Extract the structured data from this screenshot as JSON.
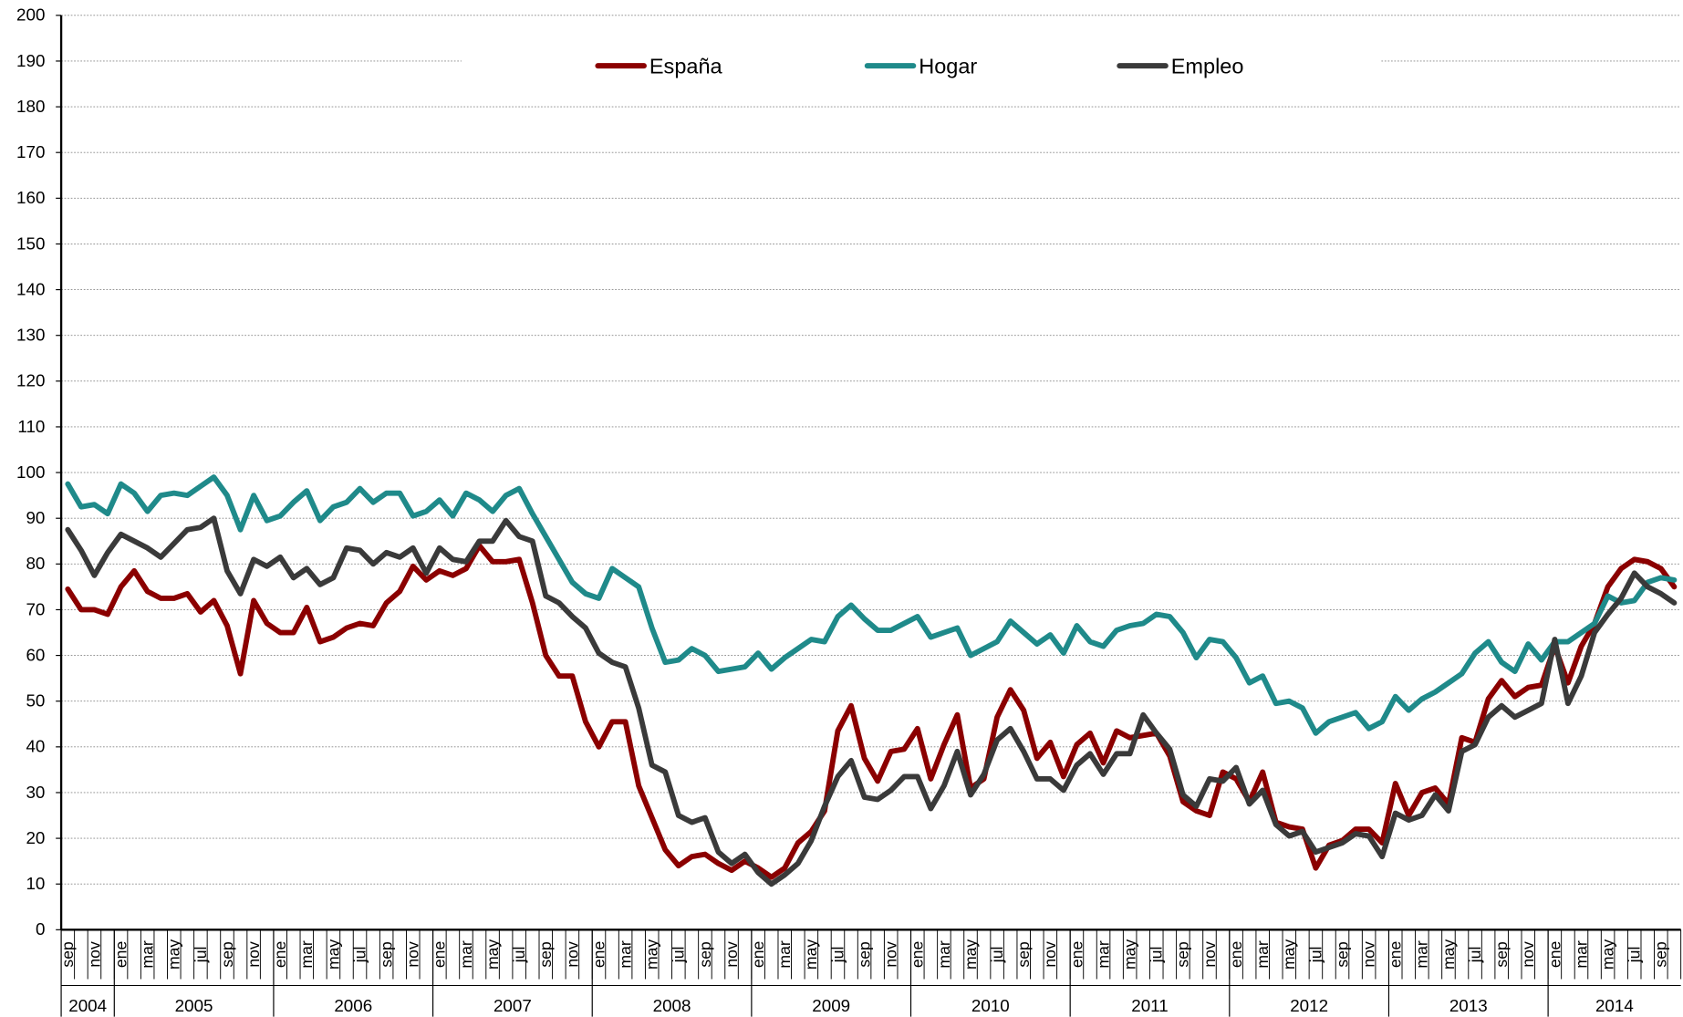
{
  "chart_data": {
    "type": "line",
    "categories": [
      "sep",
      null,
      "nov",
      null,
      "ene",
      null,
      "mar",
      null,
      "may",
      null,
      "jul",
      null,
      "sep",
      null,
      "nov",
      null,
      "ene",
      null,
      "mar",
      null,
      "may",
      null,
      "jul",
      null,
      "sep",
      null,
      "nov",
      null,
      "ene",
      null,
      "mar",
      null,
      "may",
      null,
      "jul",
      null,
      "sep",
      null,
      "nov",
      null,
      "ene",
      null,
      "mar",
      null,
      "may",
      null,
      "jul",
      null,
      "sep",
      null,
      "nov",
      null,
      "ene",
      null,
      "mar",
      null,
      "may",
      null,
      "jul",
      null,
      "sep",
      null,
      "nov",
      null,
      "ene",
      null,
      "mar",
      null,
      "may",
      null,
      "jul",
      null,
      "sep",
      null,
      "nov",
      null,
      "ene",
      null,
      "mar",
      null,
      "may",
      null,
      "jul",
      null,
      "sep",
      null,
      "nov",
      null,
      "ene",
      null,
      "mar",
      null,
      "may",
      null,
      "jul",
      null,
      "sep",
      null,
      "nov",
      null,
      "ene",
      null,
      "mar",
      null,
      "may",
      null,
      "jul",
      null,
      "sep",
      null,
      "nov",
      null,
      "ene",
      null,
      "mar",
      null,
      "may",
      null,
      "jul",
      null,
      "sep",
      null
    ],
    "years": [
      "2004",
      "2005",
      "2006",
      "2007",
      "2008",
      "2009",
      "2010",
      "2011",
      "2012",
      "2013",
      "2014"
    ],
    "series": [
      {
        "name": "España",
        "color": "#8b0000",
        "values": [
          74.5,
          70,
          70,
          69,
          75,
          78.5,
          74,
          72.5,
          72.5,
          73.5,
          69.5,
          72,
          66.5,
          56,
          72,
          67,
          65,
          65,
          70.5,
          63,
          64,
          66,
          67,
          66.5,
          71.5,
          74,
          79.5,
          76.5,
          78.5,
          77.5,
          79,
          84,
          80.5,
          80.5,
          81,
          71.5,
          60,
          55.5,
          55.5,
          45.5,
          40,
          45.5,
          45.5,
          31.5,
          24.5,
          17.5,
          14,
          16,
          16.5,
          14.5,
          13,
          15,
          13.5,
          11.5,
          13.5,
          19,
          21.5,
          26,
          43.5,
          49,
          37.5,
          32.5,
          39,
          39.5,
          44,
          33,
          40.5,
          47,
          31,
          33,
          46.5,
          52.5,
          48,
          37.5,
          41,
          33.5,
          40.5,
          43,
          36.5,
          43.5,
          42,
          42.5,
          43,
          38,
          28,
          26,
          25,
          34.5,
          33,
          28,
          34.5,
          23.5,
          22.5,
          22,
          13.5,
          18.5,
          19.5,
          22,
          22,
          19,
          32,
          25,
          30,
          31,
          27.5,
          42,
          41,
          50.5,
          54.5,
          51,
          53,
          53.5,
          62,
          54,
          62,
          67,
          75,
          79,
          81,
          80.5,
          79,
          75
        ]
      },
      {
        "name": "Hogar",
        "color": "#1f8a8a",
        "values": [
          97.5,
          92.5,
          93,
          91,
          97.5,
          95.5,
          91.5,
          95,
          95.5,
          95,
          97,
          99,
          95,
          87.5,
          95,
          89.5,
          90.5,
          93.5,
          96,
          89.5,
          92.5,
          93.5,
          96.5,
          93.5,
          95.5,
          95.5,
          90.5,
          91.5,
          94,
          90.5,
          95.5,
          94,
          91.5,
          95,
          96.5,
          91,
          86,
          81,
          76,
          73.5,
          72.5,
          79,
          77,
          75,
          66,
          58.5,
          59,
          61.5,
          60,
          56.5,
          57,
          57.5,
          60.5,
          57,
          59.5,
          61.5,
          63.5,
          63,
          68.5,
          71,
          68,
          65.5,
          65.5,
          67,
          68.5,
          64,
          65,
          66,
          60,
          61.5,
          63,
          67.5,
          65,
          62.5,
          64.5,
          60.5,
          66.5,
          63,
          62,
          65.5,
          66.5,
          67,
          69,
          68.5,
          65,
          59.5,
          63.5,
          63,
          59.5,
          54,
          55.5,
          49.5,
          50,
          48.5,
          43,
          45.5,
          46.5,
          47.5,
          44,
          45.5,
          51,
          48,
          50.5,
          52,
          54,
          56,
          60.5,
          63,
          58.5,
          56.5,
          62.5,
          59,
          63,
          63,
          65,
          67,
          73,
          71.5,
          72,
          76,
          77,
          76.5
        ]
      },
      {
        "name": "Empleo",
        "color": "#3a3a3a",
        "values": [
          87.5,
          83,
          77.5,
          82.5,
          86.5,
          85,
          83.5,
          81.5,
          84.5,
          87.5,
          88,
          90,
          78.5,
          73.5,
          81,
          79.5,
          81.5,
          77,
          79,
          75.5,
          77,
          83.5,
          83,
          80,
          82.5,
          81.5,
          83.5,
          78,
          83.5,
          81,
          80.5,
          85,
          85,
          89.5,
          86,
          85,
          73,
          71.5,
          68.5,
          66,
          60.5,
          58.5,
          57.5,
          48.5,
          36,
          34.5,
          25,
          23.5,
          24.5,
          17,
          14.5,
          16.5,
          12.5,
          10,
          12,
          14.5,
          19.5,
          27,
          33.5,
          37,
          29,
          28.5,
          30.5,
          33.5,
          33.5,
          26.5,
          31.5,
          39,
          29.5,
          34,
          41.5,
          44,
          39,
          33,
          33,
          30.5,
          36,
          38.5,
          34,
          38.5,
          38.5,
          47,
          43,
          39.5,
          29.5,
          27,
          33,
          32.5,
          35.5,
          27.5,
          30.5,
          23,
          20.5,
          21.5,
          17,
          18,
          19,
          21,
          20.5,
          16,
          25.5,
          24,
          25,
          29.5,
          26,
          39,
          40.5,
          46.5,
          49,
          46.5,
          48,
          49.5,
          63.5,
          49.5,
          55.5,
          65,
          69,
          72.5,
          78,
          75,
          73.5,
          71.5
        ]
      }
    ],
    "ylim": [
      0,
      200
    ],
    "yticks": [
      0,
      10,
      20,
      30,
      40,
      50,
      60,
      70,
      80,
      90,
      100,
      110,
      120,
      130,
      140,
      150,
      160,
      170,
      180,
      190,
      200
    ],
    "grid": true,
    "legend": "top"
  }
}
